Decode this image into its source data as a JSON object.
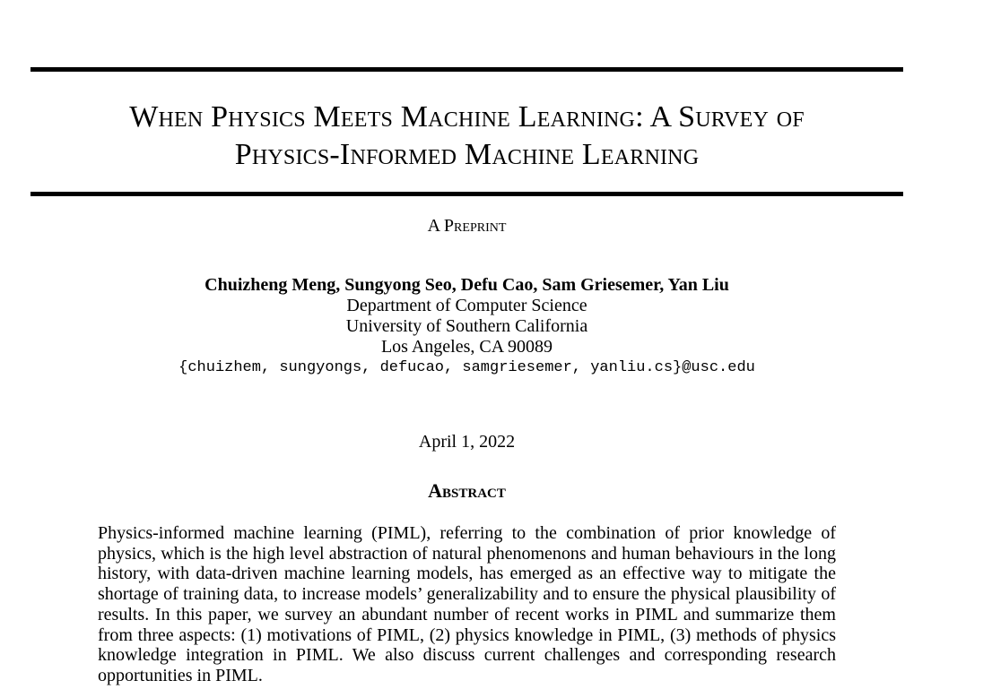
{
  "paper": {
    "title_line1": "When Physics Meets Machine Learning: A Survey of",
    "title_line2": "Physics-Informed Machine Learning",
    "preprint_label": "A Preprint",
    "authors": "Chuizheng Meng, Sungyong Seo, Defu Cao, Sam Griesemer, Yan Liu",
    "department": "Department of Computer Science",
    "university": "University of Southern California",
    "location": "Los Angeles, CA 90089",
    "email": "{chuizhem, sungyongs, defucao, samgriesemer, yanliu.cs}@usc.edu",
    "date": "April 1, 2022",
    "abstract_heading": "Abstract",
    "abstract_text": "Physics-informed machine learning (PIML), referring to the combination of prior knowledge of physics, which is the high level abstraction of natural phenomenons and human behaviours in the long history, with data-driven machine learning models, has emerged as an effective way to mitigate the shortage of training data, to increase models’ generalizability and to ensure the physical plausibil­ity of results. In this paper, we survey an abundant number of recent works in PIML and summarize them from three aspects: (1) motivations of PIML, (2) physics knowledge in PIML, (3) methods of physics knowledge integration in PIML. We also discuss current challenges and corresponding research opportunities in PIML."
  }
}
